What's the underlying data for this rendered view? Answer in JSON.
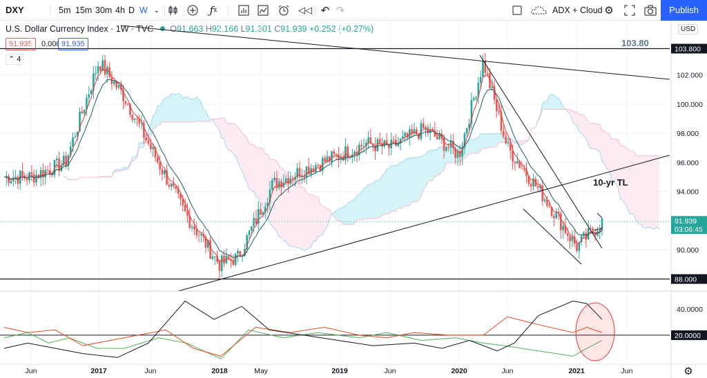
{
  "toolbar": {
    "symbol": "DXY",
    "intervals": [
      "5m",
      "15m",
      "30m",
      "4h",
      "D",
      "W"
    ],
    "active_interval": "W",
    "indicators_label": "ADX + Cloud",
    "publish_label": "Publish"
  },
  "legend": {
    "title": "U.S. Dollar Currency Index · 1W · TVC",
    "o_label": "O",
    "o": "91.663",
    "h_label": "H",
    "h": "92.166",
    "l_label": "L",
    "l": "91.301",
    "c_label": "C",
    "c": "91.939",
    "change": "+0.252 (+0.27%)",
    "price_box_1": "91.935",
    "price_box_2": "0.000",
    "price_box_3": "91.935",
    "collapse_count": "4"
  },
  "price_axis": {
    "currency": "USD",
    "ticks": [
      "102.000",
      "100.000",
      "98.000",
      "96.000",
      "94.000",
      "90.000"
    ],
    "marker_top": "103.800",
    "marker_bottom": "88.000",
    "current_price": "91.939",
    "countdown": "03:06:45"
  },
  "annotations": {
    "top_value": "103.80",
    "trendline_label": "10-yr TL"
  },
  "adx_axis": {
    "tick": "40.0000",
    "marker": "20.0000"
  },
  "time_axis": {
    "ticks": [
      "Jun",
      "2017",
      "Jun",
      "2018",
      "May",
      "2019",
      "Jun",
      "2020",
      "Jun",
      "2021",
      "Jun"
    ]
  },
  "colors": {
    "up": "#26a69a",
    "down": "#ef5350",
    "kumo_bull": "#b2ebf2",
    "kumo_bear": "#fce4ec",
    "accent": "#2962ff",
    "circle": "#e53935"
  },
  "chart_data": {
    "type": "line",
    "title": "U.S. Dollar Currency Index · 1W · TVC",
    "x": [
      "2016-06",
      "2016-09",
      "2017-01",
      "2017-03",
      "2017-06",
      "2017-09",
      "2018-01",
      "2018-03",
      "2018-06",
      "2018-09",
      "2019-01",
      "2019-04",
      "2019-06",
      "2019-10",
      "2020-01",
      "2020-03",
      "2020-06",
      "2020-09",
      "2021-01",
      "2021-03"
    ],
    "series": [
      {
        "values": [
          95.0,
          96.0,
          102.9,
          100.5,
          97.0,
          92.5,
          89.0,
          89.5,
          94.5,
          95.5,
          96.5,
          97.3,
          97.0,
          98.3,
          96.5,
          102.9,
          97.0,
          93.5,
          90.2,
          91.9
        ]
      }
    ],
    "ylim": [
      87,
      104.5
    ],
    "horizontal_levels": [
      103.8,
      88.0
    ],
    "adx_level": 20.0,
    "adx_ylim": [
      0,
      52
    ],
    "annotations": [
      "103.80",
      "10-yr TL"
    ]
  }
}
